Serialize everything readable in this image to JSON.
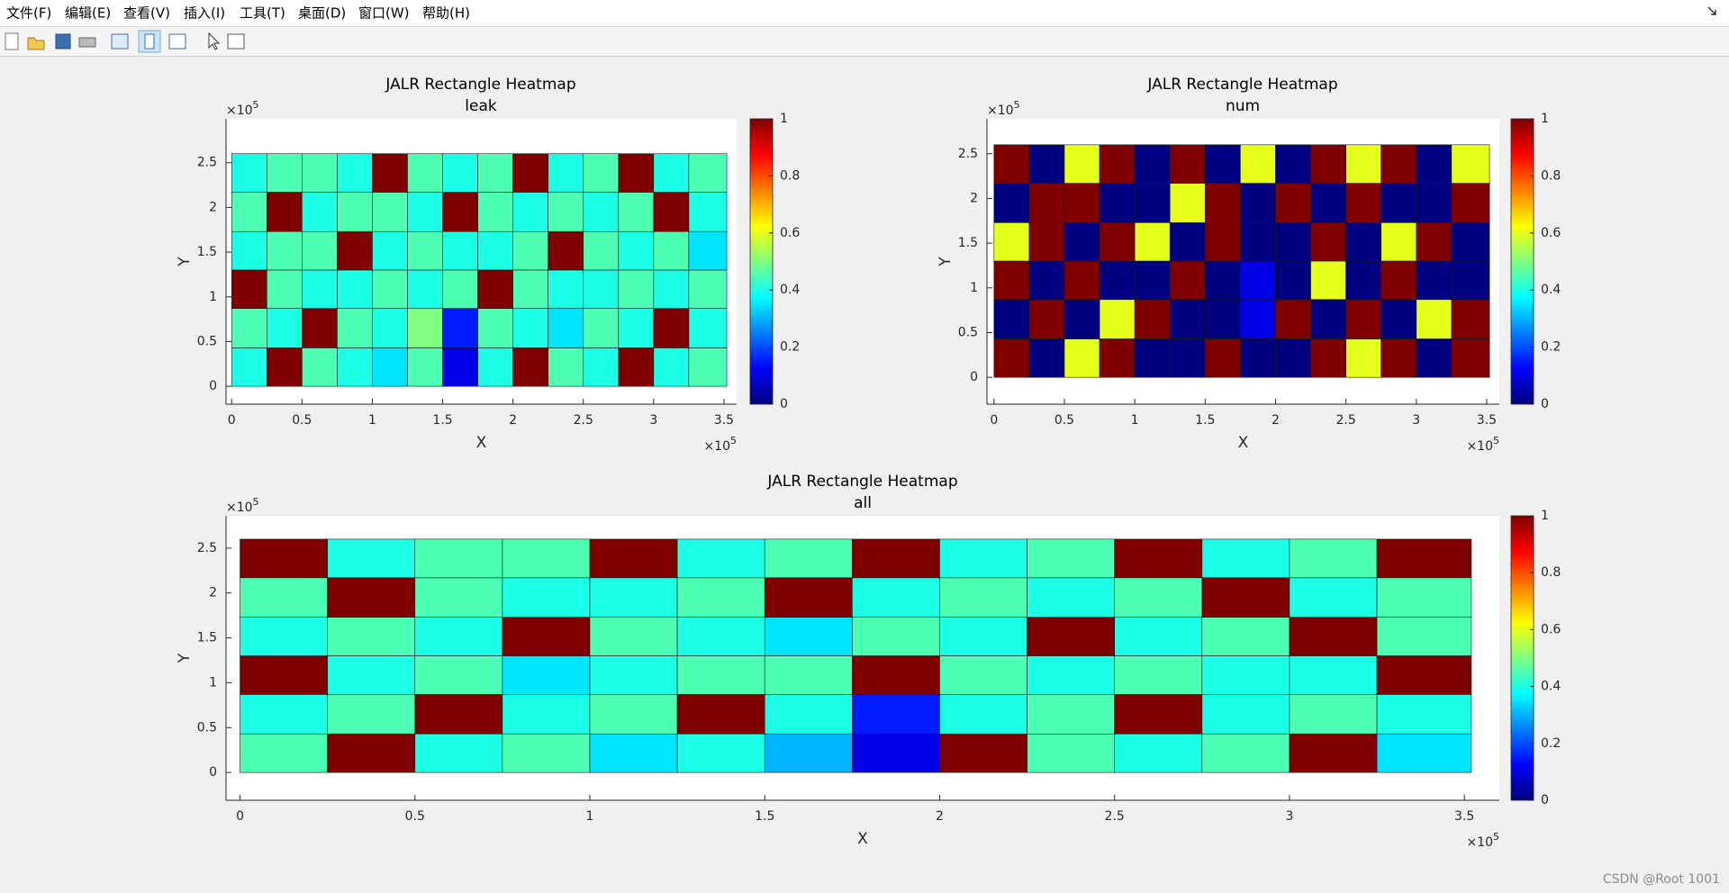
{
  "window": {
    "menu": [
      "文件(F)",
      "编辑(E)",
      "查看(V)",
      "插入(I)",
      "工具(T)",
      "桌面(D)",
      "窗口(W)",
      "帮助(H)"
    ],
    "watermark": "CSDN @Root 1001"
  },
  "chart_data": [
    {
      "type": "heatmap",
      "title": "JALR Rectangle Heatmap",
      "subtitle": "leak",
      "xlabel": "X",
      "ylabel": "Y",
      "multiplier_base": "×10",
      "x_exponent": 5,
      "y_exponent": 5,
      "colormap": "jet",
      "xlim": [
        -0.04,
        3.59
      ],
      "ylim": [
        -0.2,
        2.99
      ],
      "xticks": [
        0,
        0.5,
        1,
        1.5,
        2,
        2.5,
        3,
        3.5
      ],
      "yticks": [
        0,
        0.5,
        1,
        1.5,
        2,
        2.5
      ],
      "clim": [
        0,
        1
      ],
      "cticks": [
        0,
        0.2,
        0.4,
        0.6,
        0.8,
        1
      ],
      "x_edges": [
        0,
        0.25,
        0.5,
        0.75,
        1,
        1.25,
        1.5,
        1.75,
        2,
        2.25,
        2.5,
        2.75,
        3,
        3.25,
        3.52
      ],
      "y_edges": [
        0,
        0.43,
        0.87,
        1.3,
        1.73,
        2.17,
        2.6
      ],
      "z": [
        [
          0.4,
          1,
          0.45,
          0.4,
          0.35,
          0.45,
          0.1,
          0.4,
          1,
          0.45,
          0.4,
          1,
          0.4,
          0.45
        ],
        [
          0.45,
          0.4,
          1,
          0.45,
          0.4,
          0.5,
          0.15,
          0.45,
          0.4,
          0.35,
          0.45,
          0.4,
          1,
          0.4
        ],
        [
          1,
          0.45,
          0.4,
          0.4,
          0.45,
          0.4,
          0.45,
          1,
          0.45,
          0.4,
          0.4,
          0.45,
          0.4,
          0.45
        ],
        [
          0.4,
          0.45,
          0.45,
          1,
          0.4,
          0.45,
          0.4,
          0.4,
          0.45,
          1,
          0.45,
          0.4,
          0.45,
          0.35
        ],
        [
          0.45,
          1,
          0.4,
          0.45,
          0.45,
          0.4,
          1,
          0.45,
          0.4,
          0.45,
          0.4,
          0.45,
          1,
          0.4
        ],
        [
          0.4,
          0.45,
          0.45,
          0.4,
          1,
          0.45,
          0.4,
          0.45,
          1,
          0.4,
          0.45,
          1,
          0.4,
          0.45
        ]
      ]
    },
    {
      "type": "heatmap",
      "title": "JALR Rectangle Heatmap",
      "subtitle": "num",
      "xlabel": "X",
      "ylabel": "Y",
      "multiplier_base": "×10",
      "x_exponent": 5,
      "y_exponent": 5,
      "colormap": "jet",
      "xlim": [
        -0.05,
        3.59
      ],
      "ylim": [
        -0.3,
        2.89
      ],
      "xticks": [
        0,
        0.5,
        1,
        1.5,
        2,
        2.5,
        3,
        3.5
      ],
      "yticks": [
        0,
        0.5,
        1,
        1.5,
        2,
        2.5
      ],
      "clim": [
        0,
        1
      ],
      "cticks": [
        0,
        0.2,
        0.4,
        0.6,
        0.8,
        1
      ],
      "x_edges": [
        0,
        0.25,
        0.5,
        0.75,
        1,
        1.25,
        1.5,
        1.75,
        2,
        2.25,
        2.5,
        2.75,
        3,
        3.25,
        3.52
      ],
      "y_edges": [
        0,
        0.43,
        0.87,
        1.3,
        1.73,
        2.17,
        2.6
      ],
      "z": [
        [
          1,
          0,
          0.6,
          1,
          0,
          0,
          1,
          0,
          0,
          1,
          0.6,
          1,
          0,
          1
        ],
        [
          0,
          1,
          0,
          0.6,
          1,
          0,
          0,
          0.1,
          1,
          0,
          1,
          0,
          0.6,
          1
        ],
        [
          1,
          0,
          1,
          0,
          0,
          1,
          0,
          0.1,
          0,
          0.6,
          0,
          1,
          0,
          0
        ],
        [
          0.6,
          1,
          0,
          1,
          0.6,
          0,
          1,
          0,
          0,
          1,
          0,
          0.6,
          1,
          0
        ],
        [
          0,
          1,
          1,
          0,
          0,
          0.6,
          1,
          0,
          1,
          0,
          1,
          0,
          0,
          1
        ],
        [
          1,
          0,
          0.6,
          1,
          0,
          1,
          0,
          0.6,
          0,
          1,
          0.6,
          1,
          0,
          0.6
        ]
      ]
    },
    {
      "type": "heatmap",
      "title": "JALR Rectangle Heatmap",
      "subtitle": "all",
      "xlabel": "X",
      "ylabel": "Y",
      "multiplier_base": "×10",
      "x_exponent": 5,
      "y_exponent": 5,
      "colormap": "jet",
      "xlim": [
        -0.04,
        3.6
      ],
      "ylim": [
        -0.31,
        2.86
      ],
      "xticks": [
        0,
        0.5,
        1,
        1.5,
        2,
        2.5,
        3,
        3.5
      ],
      "yticks": [
        0,
        0.5,
        1,
        1.5,
        2,
        2.5
      ],
      "clim": [
        0,
        1
      ],
      "cticks": [
        0,
        0.2,
        0.4,
        0.6,
        0.8,
        1
      ],
      "x_edges": [
        0,
        0.25,
        0.5,
        0.75,
        1,
        1.25,
        1.5,
        1.75,
        2,
        2.25,
        2.5,
        2.75,
        3,
        3.25,
        3.52
      ],
      "y_edges": [
        0,
        0.43,
        0.87,
        1.3,
        1.73,
        2.17,
        2.6
      ],
      "z": [
        [
          0.45,
          1,
          0.4,
          0.45,
          0.35,
          0.4,
          0.3,
          0.1,
          1,
          0.45,
          0.4,
          0.45,
          1,
          0.35
        ],
        [
          0.4,
          0.45,
          1,
          0.4,
          0.45,
          1,
          0.4,
          0.15,
          0.4,
          0.45,
          1,
          0.4,
          0.45,
          0.4
        ],
        [
          1,
          0.4,
          0.45,
          0.35,
          0.4,
          0.45,
          0.45,
          1,
          0.45,
          0.4,
          0.45,
          0.4,
          0.4,
          1
        ],
        [
          0.4,
          0.45,
          0.4,
          1,
          0.45,
          0.4,
          0.35,
          0.45,
          0.4,
          1,
          0.4,
          0.45,
          1,
          0.45
        ],
        [
          0.45,
          1,
          0.45,
          0.4,
          0.4,
          0.45,
          1,
          0.4,
          0.45,
          0.4,
          0.45,
          1,
          0.4,
          0.45
        ],
        [
          1,
          0.4,
          0.45,
          0.45,
          1,
          0.4,
          0.45,
          1,
          0.4,
          0.45,
          1,
          0.4,
          0.45,
          1
        ]
      ]
    }
  ]
}
